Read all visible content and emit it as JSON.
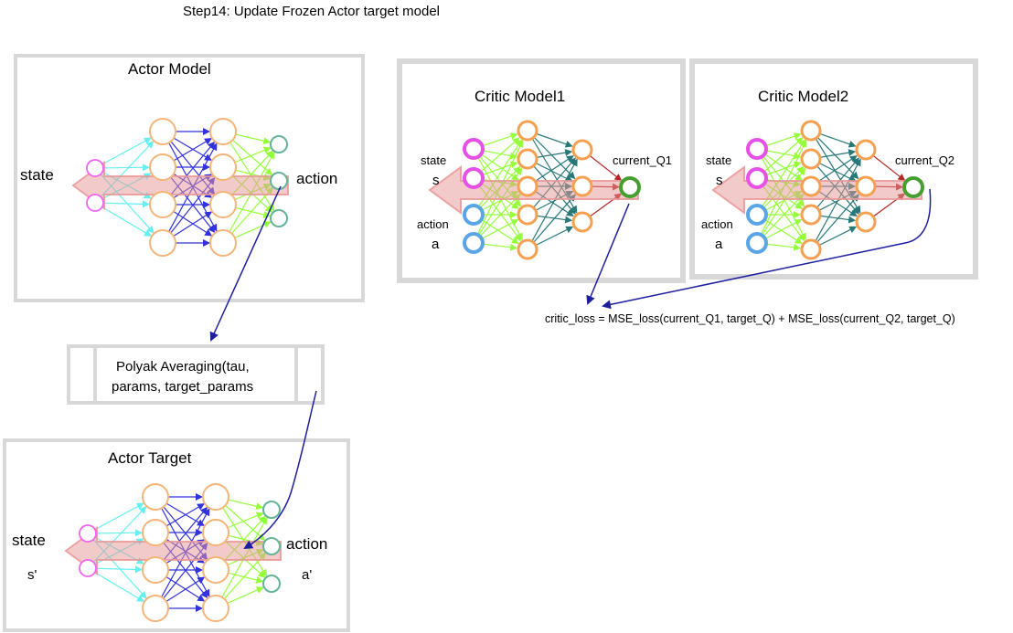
{
  "title": "Step14: Update Frozen Actor target model",
  "actor_model": {
    "title": "Actor Model",
    "input_label": "state",
    "output_label": "action"
  },
  "actor_target": {
    "title": "Actor Target",
    "input_label": "state",
    "input_symbol": "s'",
    "output_label": "action",
    "output_symbol": "a'"
  },
  "critic1": {
    "title": "Critic Model1",
    "state_label": "state",
    "state_symbol": "s",
    "action_label": "action",
    "action_symbol": "a",
    "output_label": "current_Q1"
  },
  "critic2": {
    "title": "Critic Model2",
    "state_label": "state",
    "state_symbol": "s",
    "action_label": "action",
    "action_symbol": "a",
    "output_label": "current_Q2"
  },
  "polyak": {
    "line1": "Polyak Averaging(tau,",
    "line2": "params, target_params"
  },
  "loss_formula": "critic_loss = MSE_loss(current_Q1, target_Q) + MSE_loss(current_Q2, target_Q)",
  "colors": {
    "input_node": "#f064f0",
    "hidden_node": "#f5b478",
    "output_node": "#64b496",
    "critic_state_node": "#e650e6",
    "critic_action_node": "#5aa5e6",
    "critic_hidden_node": "#f5a050",
    "critic_output_node": "#46a030",
    "edge_input": "#64f0f0",
    "edge_hidden": "#3232dc",
    "edge_output": "#96ff3c",
    "edge_critic_mid": "#287878",
    "edge_critic_out": "#b42828",
    "flow_arrow": "#e89696",
    "frame": "#d8d8d8",
    "connector": "#1e1ea0"
  }
}
